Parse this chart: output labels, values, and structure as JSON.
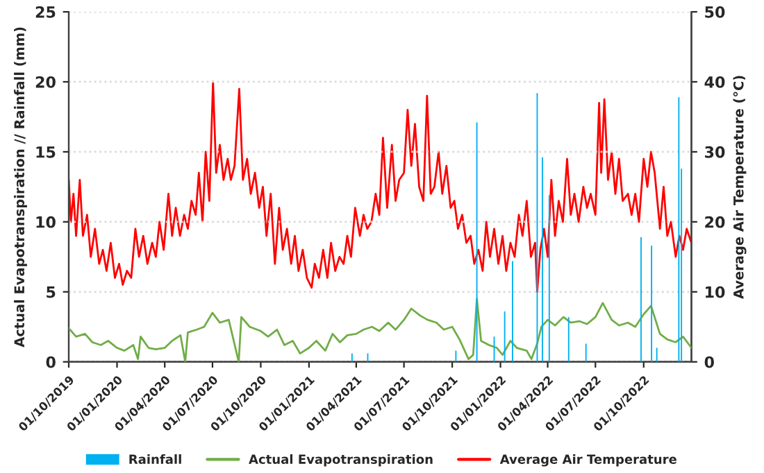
{
  "chart_data": {
    "type": "line",
    "xlabel": null,
    "ylabel": "Actual Evapotranspiration // Rainfall (mm)",
    "y2label": "Average Air Temperature (°C)",
    "xlim": [
      "2019-10-01",
      "2022-12-31"
    ],
    "xticks": [
      {
        "value": "2019-10-01",
        "label": "01/10/2019"
      },
      {
        "value": "2020-01-01",
        "label": "01/01/2020"
      },
      {
        "value": "2020-04-01",
        "label": "01/04/2020"
      },
      {
        "value": "2020-07-01",
        "label": "01/07/2020"
      },
      {
        "value": "2020-10-01",
        "label": "01/10/2020"
      },
      {
        "value": "2021-01-01",
        "label": "01/01/2021"
      },
      {
        "value": "2021-04-01",
        "label": "01/04/2021"
      },
      {
        "value": "2021-07-01",
        "label": "01/07/2021"
      },
      {
        "value": "2021-10-01",
        "label": "01/10/2021"
      },
      {
        "value": "2022-01-01",
        "label": "01/01/2022"
      },
      {
        "value": "2022-04-01",
        "label": "01/04/2022"
      },
      {
        "value": "2022-07-01",
        "label": "01/07/2022"
      },
      {
        "value": "2022-10-01",
        "label": "01/10/2022"
      }
    ],
    "ylim": [
      0,
      25
    ],
    "yticks": [
      0,
      5,
      10,
      15,
      20,
      25
    ],
    "y2lim": [
      0,
      50
    ],
    "y2ticks": [
      0,
      10,
      20,
      30,
      40,
      50
    ],
    "grid": "y",
    "legend": "bottom",
    "marker": "none",
    "line_style": "solid",
    "series": [
      {
        "name": "Rainfall",
        "type": "bar",
        "color": "#00b0f0",
        "x": [
          "2021-03-24",
          "2021-04-23",
          "2021-10-08",
          "2021-11-17",
          "2021-12-20",
          "2022-01-09",
          "2022-01-24",
          "2022-03-12",
          "2022-03-22",
          "2022-04-04",
          "2022-05-11",
          "2022-06-13",
          "2022-09-26",
          "2022-10-16",
          "2022-10-26",
          "2022-12-07",
          "2022-12-12"
        ],
        "values": [
          0.6,
          0.6,
          0.8,
          17.1,
          1.8,
          3.6,
          7.2,
          19.2,
          14.6,
          11.9,
          3.2,
          1.3,
          8.9,
          8.3,
          1.0,
          18.9,
          13.8
        ]
      },
      {
        "name": "Actual Evapotranspiration",
        "color": "#70ad47",
        "x": [
          "2019-10-01",
          "2019-10-15",
          "2019-11-01",
          "2019-11-15",
          "2019-12-01",
          "2019-12-15",
          "2020-01-01",
          "2020-01-15",
          "2020-02-01",
          "2020-02-10",
          "2020-02-15",
          "2020-03-01",
          "2020-03-15",
          "2020-04-01",
          "2020-04-15",
          "2020-05-01",
          "2020-05-10",
          "2020-05-15",
          "2020-06-01",
          "2020-06-15",
          "2020-07-01",
          "2020-07-15",
          "2020-08-01",
          "2020-08-20",
          "2020-08-25",
          "2020-09-10",
          "2020-10-01",
          "2020-10-15",
          "2020-11-01",
          "2020-11-15",
          "2020-12-01",
          "2020-12-15",
          "2021-01-01",
          "2021-01-15",
          "2021-02-01",
          "2021-02-15",
          "2021-03-01",
          "2021-03-15",
          "2021-04-01",
          "2021-04-15",
          "2021-05-01",
          "2021-05-15",
          "2021-06-01",
          "2021-06-15",
          "2021-07-01",
          "2021-07-15",
          "2021-08-01",
          "2021-08-15",
          "2021-09-01",
          "2021-09-15",
          "2021-10-01",
          "2021-10-15",
          "2021-11-01",
          "2021-11-10",
          "2021-11-17",
          "2021-11-25",
          "2021-12-10",
          "2021-12-25",
          "2022-01-05",
          "2022-01-20",
          "2022-02-01",
          "2022-02-20",
          "2022-03-01",
          "2022-03-12",
          "2022-03-20",
          "2022-04-01",
          "2022-04-15",
          "2022-05-01",
          "2022-05-15",
          "2022-06-01",
          "2022-06-15",
          "2022-07-01",
          "2022-07-15",
          "2022-08-01",
          "2022-08-15",
          "2022-09-01",
          "2022-09-15",
          "2022-10-01",
          "2022-10-15",
          "2022-11-01",
          "2022-11-15",
          "2022-12-01",
          "2022-12-15",
          "2022-12-31"
        ],
        "values": [
          2.4,
          1.8,
          2.0,
          1.4,
          1.2,
          1.5,
          1.0,
          0.8,
          1.2,
          0.2,
          1.8,
          1.0,
          0.9,
          1.0,
          1.5,
          1.9,
          0,
          2.1,
          2.3,
          2.5,
          3.5,
          2.8,
          3.0,
          0,
          3.2,
          2.5,
          2.2,
          1.8,
          2.3,
          1.2,
          1.5,
          0.6,
          1.0,
          1.5,
          0.8,
          2.0,
          1.4,
          1.9,
          2.0,
          2.3,
          2.5,
          2.2,
          2.8,
          2.3,
          3.0,
          3.8,
          3.3,
          3.0,
          2.8,
          2.3,
          2.5,
          1.6,
          0.2,
          0.5,
          4.5,
          1.5,
          1.2,
          1.0,
          0.5,
          1.5,
          1.0,
          0.8,
          0.2,
          1.3,
          2.5,
          3.0,
          2.6,
          3.2,
          2.8,
          2.9,
          2.7,
          3.2,
          4.2,
          3.0,
          2.6,
          2.8,
          2.5,
          3.4,
          4.0,
          2.0,
          1.6,
          1.4,
          1.8,
          1.0
        ]
      },
      {
        "name": "Average Air Temperature",
        "axis": "y2",
        "color": "#ff0000",
        "x": [
          "2019-10-01",
          "2019-10-05",
          "2019-10-10",
          "2019-10-15",
          "2019-10-22",
          "2019-10-28",
          "2019-11-05",
          "2019-11-12",
          "2019-11-20",
          "2019-11-28",
          "2019-12-05",
          "2019-12-12",
          "2019-12-20",
          "2019-12-28",
          "2020-01-05",
          "2020-01-12",
          "2020-01-20",
          "2020-01-28",
          "2020-02-05",
          "2020-02-12",
          "2020-02-20",
          "2020-02-28",
          "2020-03-08",
          "2020-03-15",
          "2020-03-22",
          "2020-03-30",
          "2020-04-08",
          "2020-04-15",
          "2020-04-22",
          "2020-04-30",
          "2020-05-08",
          "2020-05-15",
          "2020-05-22",
          "2020-05-30",
          "2020-06-05",
          "2020-06-12",
          "2020-06-18",
          "2020-06-25",
          "2020-07-02",
          "2020-07-08",
          "2020-07-15",
          "2020-07-22",
          "2020-07-30",
          "2020-08-05",
          "2020-08-12",
          "2020-08-21",
          "2020-08-28",
          "2020-09-05",
          "2020-09-12",
          "2020-09-20",
          "2020-09-28",
          "2020-10-05",
          "2020-10-12",
          "2020-10-20",
          "2020-10-28",
          "2020-11-05",
          "2020-11-12",
          "2020-11-20",
          "2020-11-28",
          "2020-12-05",
          "2020-12-12",
          "2020-12-20",
          "2020-12-28",
          "2021-01-06",
          "2021-01-12",
          "2021-01-20",
          "2021-01-28",
          "2021-02-05",
          "2021-02-12",
          "2021-02-20",
          "2021-02-28",
          "2021-03-08",
          "2021-03-15",
          "2021-03-22",
          "2021-03-30",
          "2021-04-08",
          "2021-04-15",
          "2021-04-22",
          "2021-04-30",
          "2021-05-08",
          "2021-05-15",
          "2021-05-22",
          "2021-05-30",
          "2021-06-08",
          "2021-06-15",
          "2021-06-22",
          "2021-07-01",
          "2021-07-08",
          "2021-07-15",
          "2021-07-22",
          "2021-07-30",
          "2021-08-07",
          "2021-08-14",
          "2021-08-21",
          "2021-08-28",
          "2021-09-05",
          "2021-09-12",
          "2021-09-20",
          "2021-09-28",
          "2021-10-05",
          "2021-10-12",
          "2021-10-20",
          "2021-10-28",
          "2021-11-05",
          "2021-11-12",
          "2021-11-20",
          "2021-11-28",
          "2021-12-05",
          "2021-12-12",
          "2021-12-20",
          "2021-12-28",
          "2022-01-05",
          "2022-01-12",
          "2022-01-20",
          "2022-01-28",
          "2022-02-05",
          "2022-02-12",
          "2022-02-20",
          "2022-02-28",
          "2022-03-08",
          "2022-03-12",
          "2022-03-18",
          "2022-03-25",
          "2022-04-01",
          "2022-04-08",
          "2022-04-15",
          "2022-04-22",
          "2022-04-30",
          "2022-05-08",
          "2022-05-15",
          "2022-05-22",
          "2022-05-30",
          "2022-06-08",
          "2022-06-15",
          "2022-06-22",
          "2022-07-01",
          "2022-07-08",
          "2022-07-12",
          "2022-07-18",
          "2022-07-25",
          "2022-08-01",
          "2022-08-08",
          "2022-08-15",
          "2022-08-22",
          "2022-09-01",
          "2022-09-08",
          "2022-09-15",
          "2022-09-22",
          "2022-10-01",
          "2022-10-08",
          "2022-10-15",
          "2022-10-22",
          "2022-11-01",
          "2022-11-08",
          "2022-11-15",
          "2022-11-22",
          "2022-12-01",
          "2022-12-08",
          "2022-12-15",
          "2022-12-22",
          "2022-12-31"
        ],
        "values": [
          26,
          20,
          24,
          18,
          26,
          18,
          21,
          15,
          19,
          14,
          16,
          13,
          17,
          12,
          14,
          11,
          13,
          12,
          19,
          15,
          18,
          14,
          17,
          15,
          20,
          16,
          24,
          18,
          22,
          18,
          21,
          19,
          23,
          21,
          27,
          20,
          30,
          23,
          40,
          27,
          31,
          26,
          29,
          26,
          28,
          39,
          26,
          29,
          24,
          27,
          22,
          25,
          18,
          24,
          14,
          22,
          16,
          19,
          14,
          18,
          13,
          16,
          12,
          10.6,
          14,
          12,
          16,
          12,
          17,
          13,
          15,
          14,
          18,
          15,
          22,
          18,
          21,
          19,
          20,
          24,
          21,
          32,
          22,
          31,
          23,
          26,
          27,
          36,
          28,
          34,
          25,
          23,
          38,
          24,
          25,
          30,
          24,
          28,
          22,
          23,
          19,
          21,
          17,
          18,
          14,
          16,
          13,
          20,
          15,
          19,
          14,
          18,
          13,
          17,
          15,
          21,
          18,
          23,
          15,
          17,
          10,
          16,
          19,
          15,
          26,
          18,
          23,
          20,
          29,
          21,
          24,
          20,
          25,
          22,
          24,
          21,
          37,
          27,
          37.5,
          26,
          30,
          24,
          29,
          23,
          24,
          21,
          24,
          20,
          29,
          25,
          30,
          27,
          19,
          25,
          18,
          20,
          15,
          18,
          16,
          19,
          17
        ]
      }
    ]
  }
}
